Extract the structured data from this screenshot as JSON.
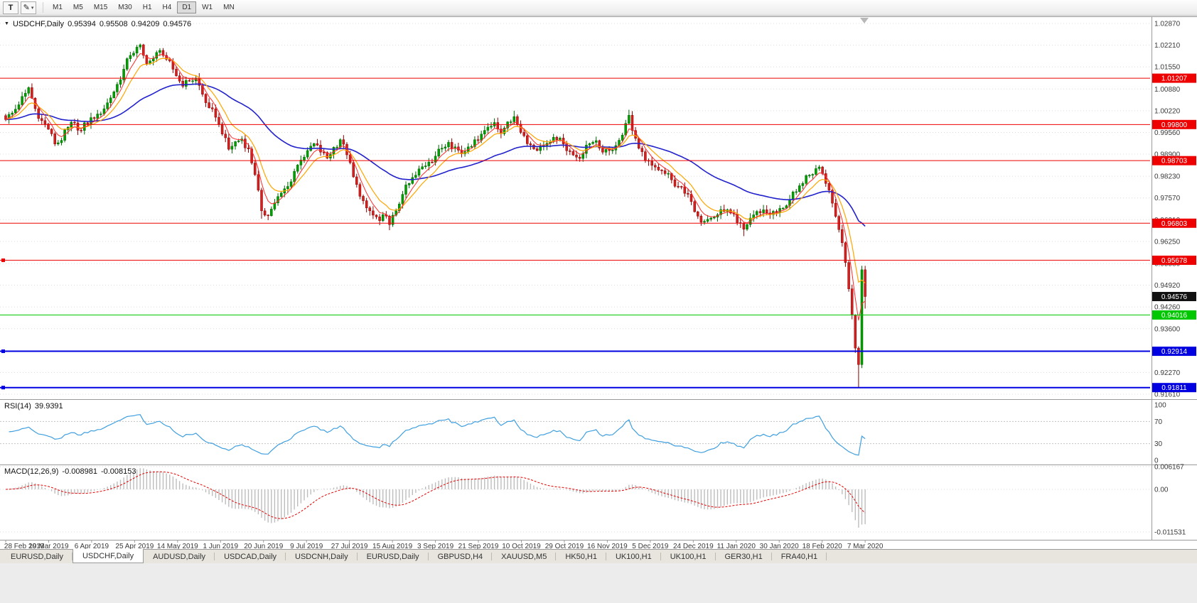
{
  "toolbar": {
    "text_tool_label": "T",
    "pencil_icon": "✎",
    "dropdown_caret": "▾",
    "timeframes": [
      "M1",
      "M5",
      "M15",
      "M30",
      "H1",
      "H4",
      "D1",
      "W1",
      "MN"
    ],
    "active_timeframe": "D1"
  },
  "chart_data": {
    "type": "candlestick",
    "title": "USDCHF,Daily",
    "symbol_label": "USDCHF,Daily",
    "ohlc": {
      "open": "0.95394",
      "high": "0.95508",
      "low": "0.94209",
      "close": "0.94576"
    },
    "current_price": "0.94576",
    "colors": {
      "up": "#00a000",
      "up_border": "#006400",
      "down": "#d62020",
      "down_border": "#8b0000",
      "ma_fast": "#ff2a2a",
      "ma_mid": "#ffa500",
      "ma_slow": "#2222cc",
      "rsi": "#3f9fdf",
      "macd_signal": "#e00000",
      "macd_histogram": "#bdbdbd",
      "hline_red": "#ee0000",
      "hline_green": "#00c800",
      "hline_blue": "#0000e0",
      "current_price_bg": "#111111"
    },
    "y_axis": {
      "ticks": [
        "1.02870",
        "1.02210",
        "1.01550",
        "1.00880",
        "1.00220",
        "0.99560",
        "0.98900",
        "0.98230",
        "0.97570",
        "0.96910",
        "0.96250",
        "0.95580",
        "0.94920",
        "0.94260",
        "0.93600",
        "0.92930",
        "0.92270",
        "0.91610"
      ]
    },
    "x_labels": [
      "28 Feb 2019",
      "19 Mar 2019",
      "6 Apr 2019",
      "25 Apr 2019",
      "14 May 2019",
      "1 Jun 2019",
      "20 Jun 2019",
      "9 Jul 2019",
      "27 Jul 2019",
      "15 Aug 2019",
      "3 Sep 2019",
      "21 Sep 2019",
      "10 Oct 2019",
      "29 Oct 2019",
      "16 Nov 2019",
      "5 Dec 2019",
      "24 Dec 2019",
      "11 Jan 2020",
      "30 Jan 2020",
      "18 Feb 2020",
      "7 Mar 2020"
    ],
    "x_label_step": 13.1,
    "total_candles": 263,
    "horizontal_lines": [
      {
        "price": "1.01207",
        "color": "#ee0000",
        "thickness": 1,
        "handle": false
      },
      {
        "price": "0.99800",
        "color": "#ee0000",
        "thickness": 1,
        "handle": false
      },
      {
        "price": "0.98703",
        "color": "#ee0000",
        "thickness": 1,
        "handle": false
      },
      {
        "price": "0.96803",
        "color": "#ee0000",
        "thickness": 1,
        "handle": false
      },
      {
        "price": "0.95678",
        "color": "#ee0000",
        "thickness": 1,
        "handle": true
      },
      {
        "price": "0.94016",
        "color": "#00c800",
        "thickness": 1,
        "handle": false
      },
      {
        "price": "0.92914",
        "color": "#0000e0",
        "thickness": 2,
        "handle": true
      },
      {
        "price": "0.91811",
        "color": "#0000e0",
        "thickness": 2,
        "handle": true
      }
    ],
    "indicators": {
      "rsi": {
        "label": "RSI(14)",
        "value": "39.9391",
        "levels": [
          "100",
          "70",
          "30",
          "0"
        ],
        "dotted_levels": [
          70,
          30
        ]
      },
      "macd": {
        "label": "MACD(12,26,9)",
        "main_value": "-0.008981",
        "signal_value": "-0.008153",
        "axis_labels": [
          "0.006167",
          "0.00",
          "-0.011531"
        ]
      }
    },
    "price_anchors": [
      [
        0,
        0.9995
      ],
      [
        2,
        1.0015
      ],
      [
        4,
        1.004
      ],
      [
        6,
        1.0075
      ],
      [
        7,
        1.0092
      ],
      [
        8,
        1.006
      ],
      [
        9,
        1.0028
      ],
      [
        11,
        0.9992
      ],
      [
        13,
        0.9966
      ],
      [
        15,
        0.9921
      ],
      [
        17,
        0.9932
      ],
      [
        19,
        0.9972
      ],
      [
        21,
        0.9985
      ],
      [
        23,
        0.9962
      ],
      [
        26,
        1.0001
      ],
      [
        28,
        1.0012
      ],
      [
        30,
        1.0028
      ],
      [
        32,
        1.0061
      ],
      [
        34,
        1.0102
      ],
      [
        36,
        1.0148
      ],
      [
        38,
        1.019
      ],
      [
        40,
        1.0215
      ],
      [
        41,
        1.0222
      ],
      [
        42,
        1.019
      ],
      [
        43,
        1.0165
      ],
      [
        45,
        1.0181
      ],
      [
        47,
        1.0205
      ],
      [
        49,
        1.0178
      ],
      [
        51,
        1.0148
      ],
      [
        52,
        1.0128
      ],
      [
        54,
        1.0096
      ],
      [
        56,
        1.0112
      ],
      [
        58,
        1.0121
      ],
      [
        60,
        1.0072
      ],
      [
        62,
        1.0031
      ],
      [
        64,
        1.0002
      ],
      [
        66,
        0.9951
      ],
      [
        68,
        0.9905
      ],
      [
        70,
        0.9928
      ],
      [
        72,
        0.9936
      ],
      [
        74,
        0.9906
      ],
      [
        76,
        0.9828
      ],
      [
        78,
        0.9718
      ],
      [
        80,
        0.9703
      ],
      [
        82,
        0.9742
      ],
      [
        84,
        0.9772
      ],
      [
        86,
        0.9792
      ],
      [
        88,
        0.9838
      ],
      [
        90,
        0.9872
      ],
      [
        92,
        0.9901
      ],
      [
        94,
        0.9922
      ],
      [
        96,
        0.9896
      ],
      [
        98,
        0.9878
      ],
      [
        100,
        0.9911
      ],
      [
        102,
        0.9934
      ],
      [
        104,
        0.9888
      ],
      [
        106,
        0.9821
      ],
      [
        108,
        0.9762
      ],
      [
        110,
        0.9727
      ],
      [
        112,
        0.9705
      ],
      [
        114,
        0.9688
      ],
      [
        116,
        0.9702
      ],
      [
        117,
        0.9676
      ],
      [
        119,
        0.9718
      ],
      [
        121,
        0.9768
      ],
      [
        123,
        0.9801
      ],
      [
        125,
        0.9826
      ],
      [
        127,
        0.9852
      ],
      [
        129,
        0.9866
      ],
      [
        131,
        0.9884
      ],
      [
        133,
        0.9908
      ],
      [
        135,
        0.9926
      ],
      [
        137,
        0.9912
      ],
      [
        139,
        0.9891
      ],
      [
        141,
        0.9912
      ],
      [
        143,
        0.9934
      ],
      [
        145,
        0.9951
      ],
      [
        147,
        0.9972
      ],
      [
        149,
        0.9986
      ],
      [
        151,
        0.9952
      ],
      [
        153,
        0.9988
      ],
      [
        155,
        1.0004
      ],
      [
        156,
        0.9981
      ],
      [
        158,
        0.9946
      ],
      [
        160,
        0.9918
      ],
      [
        162,
        0.9901
      ],
      [
        164,
        0.9916
      ],
      [
        166,
        0.9928
      ],
      [
        168,
        0.9934
      ],
      [
        170,
        0.9921
      ],
      [
        172,
        0.9898
      ],
      [
        174,
        0.9881
      ],
      [
        176,
        0.9892
      ],
      [
        178,
        0.9922
      ],
      [
        180,
        0.9931
      ],
      [
        182,
        0.9896
      ],
      [
        184,
        0.9901
      ],
      [
        186,
        0.9916
      ],
      [
        188,
        0.9948
      ],
      [
        190,
        1.0008
      ],
      [
        191,
        0.9962
      ],
      [
        193,
        0.9908
      ],
      [
        195,
        0.9871
      ],
      [
        197,
        0.9856
      ],
      [
        199,
        0.9842
      ],
      [
        201,
        0.9831
      ],
      [
        203,
        0.9812
      ],
      [
        205,
        0.9792
      ],
      [
        207,
        0.9771
      ],
      [
        209,
        0.9746
      ],
      [
        211,
        0.9702
      ],
      [
        213,
        0.9686
      ],
      [
        215,
        0.9696
      ],
      [
        217,
        0.9706
      ],
      [
        219,
        0.9716
      ],
      [
        221,
        0.9711
      ],
      [
        223,
        0.9682
      ],
      [
        225,
        0.9662
      ],
      [
        227,
        0.9696
      ],
      [
        229,
        0.9716
      ],
      [
        231,
        0.9721
      ],
      [
        233,
        0.9706
      ],
      [
        235,
        0.9712
      ],
      [
        237,
        0.9726
      ],
      [
        239,
        0.9752
      ],
      [
        241,
        0.9776
      ],
      [
        243,
        0.9801
      ],
      [
        245,
        0.9826
      ],
      [
        247,
        0.9846
      ],
      [
        248,
        0.9851
      ],
      [
        249,
        0.9831
      ],
      [
        250,
        0.9801
      ],
      [
        251,
        0.9781
      ],
      [
        252,
        0.9741
      ],
      [
        253,
        0.9701
      ],
      [
        254,
        0.9661
      ],
      [
        255,
        0.9621
      ],
      [
        256,
        0.9561
      ],
      [
        257,
        0.9481
      ],
      [
        258,
        0.9401
      ],
      [
        259,
        0.9301
      ],
      [
        260,
        0.9251
      ],
      [
        261,
        0.9539
      ],
      [
        262,
        0.94576
      ]
    ],
    "wick_overrides": {
      "41": {
        "high": 1.0226
      },
      "78": {
        "low": 0.9694
      },
      "117": {
        "low": 0.9659
      },
      "155": {
        "high": 1.0022
      },
      "190": {
        "high": 1.0025
      },
      "225": {
        "low": 0.9641
      },
      "260": {
        "low": 0.9182
      },
      "261": {
        "high": 0.9551
      },
      "262": {
        "high": 0.95508,
        "low": 0.94209
      }
    }
  },
  "tabs": {
    "items": [
      "EURUSD,Daily",
      "USDCHF,Daily",
      "AUDUSD,Daily",
      "USDCAD,Daily",
      "USDCNH,Daily",
      "EURUSD,Daily",
      "GBPUSD,H4",
      "XAUUSD,M5",
      "HK50,H1",
      "UK100,H1",
      "UK100,H1",
      "GER30,H1",
      "FRA40,H1"
    ],
    "active_index": 1
  }
}
